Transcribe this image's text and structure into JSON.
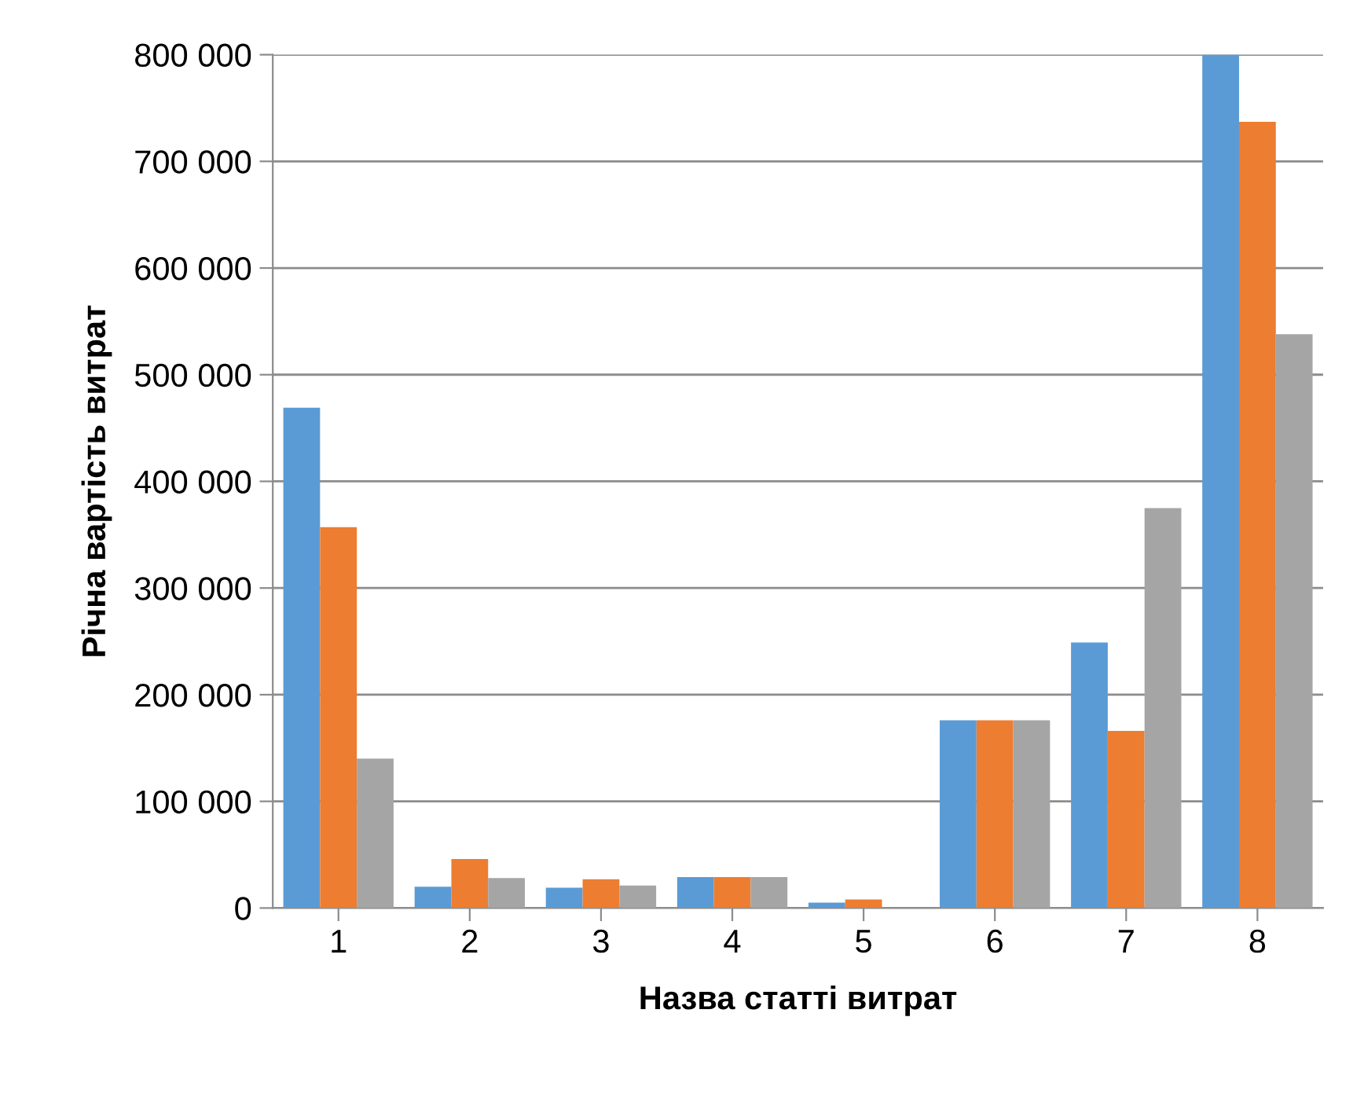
{
  "chart_data": {
    "type": "bar",
    "xlabel": "Назва статті витрат",
    "ylabel": "Річна вартість витрат",
    "categories": [
      "1",
      "2",
      "3",
      "4",
      "5",
      "6",
      "7",
      "8"
    ],
    "series": [
      {
        "color": "#5b9bd5",
        "values": [
          469000,
          20000,
          19000,
          29000,
          5000,
          176000,
          249000,
          800000
        ]
      },
      {
        "color": "#ed7d31",
        "values": [
          357000,
          46000,
          27000,
          29000,
          8000,
          176000,
          166000,
          737000
        ]
      },
      {
        "color": "#a5a5a5",
        "values": [
          140000,
          28000,
          21000,
          29000,
          null,
          176000,
          375000,
          538000
        ]
      }
    ],
    "ylim": [
      0,
      800000
    ],
    "yticks": [
      {
        "value": 0,
        "label": "0"
      },
      {
        "value": 100000,
        "label": "100 000"
      },
      {
        "value": 200000,
        "label": "200 000"
      },
      {
        "value": 300000,
        "label": "300 000"
      },
      {
        "value": 400000,
        "label": "400 000"
      },
      {
        "value": 500000,
        "label": "500 000"
      },
      {
        "value": 600000,
        "label": "600 000"
      },
      {
        "value": 700000,
        "label": "700 000"
      },
      {
        "value": 800000,
        "label": "800 000"
      }
    ],
    "grid": "y"
  }
}
